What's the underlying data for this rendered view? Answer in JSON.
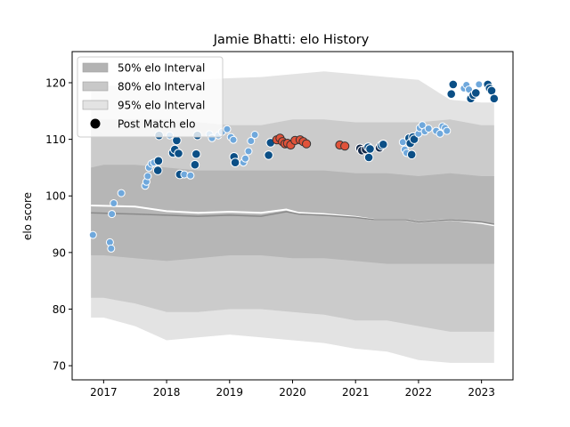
{
  "chart_data": {
    "type": "scatter",
    "title": "Jamie Bhatti: elo History",
    "xlabel": "",
    "ylabel": "elo score",
    "xlim": [
      2016.5,
      2023.5
    ],
    "ylim": [
      67.5,
      125.5
    ],
    "x_ticks": [
      2017,
      2018,
      2019,
      2020,
      2021,
      2022,
      2023
    ],
    "x_tick_labels": [
      "2017",
      "2018",
      "2019",
      "2020",
      "2021",
      "2022",
      "2023"
    ],
    "y_ticks": [
      70,
      80,
      90,
      100,
      110,
      120
    ],
    "y_tick_labels": [
      "70",
      "80",
      "90",
      "100",
      "110",
      "120"
    ],
    "grid": false,
    "legend_position": "top-left",
    "legend": [
      {
        "label": "50% elo Interval",
        "kind": "band",
        "color": "#b3b3b3"
      },
      {
        "label": "80% elo Interval",
        "kind": "band",
        "color": "#c8c8c8"
      },
      {
        "label": "95% elo Interval",
        "kind": "band",
        "color": "#e3e3e3"
      },
      {
        "label": "Post Match elo",
        "kind": "marker",
        "color": "#000000"
      }
    ],
    "colors": {
      "band95": "#e3e3e3",
      "band80": "#cbcbcb",
      "band50": "#b6b6b6",
      "mean_line": "#8a8a8a",
      "median_line": "#ffffff",
      "light_point": "#6fa8dc",
      "dark_point": "#0b4f86",
      "red_point": "#e0533a",
      "navy_point": "#132848",
      "marker_edge": "#ffffff",
      "dark_edge": "#333333"
    },
    "bands": {
      "x": [
        2016.8,
        2017.0,
        2017.5,
        2018.0,
        2018.5,
        2019.0,
        2019.5,
        2020.0,
        2020.5,
        2021.0,
        2021.5,
        2022.0,
        2022.5,
        2023.0,
        2023.2
      ],
      "p95_upper": [
        119.5,
        119.5,
        119.5,
        120.0,
        120.5,
        120.8,
        121.0,
        121.5,
        122.0,
        121.5,
        121.0,
        120.5,
        117.0,
        116.5,
        116.5
      ],
      "p80_upper": [
        113.5,
        113.5,
        113.5,
        113.5,
        113.0,
        112.5,
        112.5,
        113.5,
        113.5,
        113.0,
        113.0,
        113.0,
        113.5,
        112.5,
        112.5
      ],
      "p50_upper": [
        105.0,
        105.5,
        105.5,
        105.0,
        104.5,
        104.5,
        104.5,
        104.5,
        104.5,
        104.0,
        104.0,
        103.5,
        104.0,
        103.5,
        103.5
      ],
      "p50_lower": [
        89.5,
        89.5,
        89.0,
        88.5,
        89.0,
        89.5,
        89.5,
        89.0,
        89.0,
        88.5,
        88.0,
        88.0,
        88.0,
        88.0,
        88.0
      ],
      "p80_lower": [
        82.0,
        82.0,
        81.0,
        79.5,
        79.5,
        80.0,
        80.0,
        79.5,
        79.0,
        78.0,
        78.0,
        77.0,
        76.0,
        76.0,
        76.0
      ],
      "p95_lower": [
        78.5,
        78.5,
        77.0,
        74.5,
        75.0,
        75.5,
        75.0,
        74.5,
        74.0,
        73.0,
        72.5,
        71.0,
        70.5,
        70.5,
        70.5
      ]
    },
    "mean_line": {
      "x": [
        2016.8,
        2017.5,
        2018.0,
        2018.5,
        2019.0,
        2019.5,
        2019.9,
        2020.1,
        2020.5,
        2021.0,
        2021.3,
        2021.8,
        2022.0,
        2022.5,
        2023.0,
        2023.2
      ],
      "y": [
        97.0,
        96.8,
        96.6,
        96.4,
        96.6,
        96.4,
        97.2,
        96.8,
        96.6,
        96.2,
        95.8,
        95.8,
        95.4,
        95.8,
        95.4,
        95.0
      ]
    },
    "median_line": {
      "x": [
        2016.8,
        2017.5,
        2018.0,
        2018.5,
        2019.0,
        2019.5,
        2019.9,
        2020.1,
        2020.5,
        2021.0,
        2021.3,
        2021.8,
        2022.0,
        2022.5,
        2023.0,
        2023.2
      ],
      "y": [
        98.3,
        98.1,
        97.3,
        97.0,
        97.2,
        97.0,
        97.6,
        97.0,
        96.8,
        96.3,
        95.8,
        95.8,
        95.4,
        95.8,
        95.2,
        94.8
      ]
    },
    "points": [
      {
        "x": 2016.83,
        "y": 93.1,
        "c": "light"
      },
      {
        "x": 2017.1,
        "y": 91.8,
        "c": "light"
      },
      {
        "x": 2017.12,
        "y": 90.7,
        "c": "light"
      },
      {
        "x": 2017.13,
        "y": 96.8,
        "c": "light"
      },
      {
        "x": 2017.16,
        "y": 98.7,
        "c": "light"
      },
      {
        "x": 2017.28,
        "y": 100.5,
        "c": "light"
      },
      {
        "x": 2017.66,
        "y": 101.8,
        "c": "light"
      },
      {
        "x": 2017.68,
        "y": 102.5,
        "c": "light"
      },
      {
        "x": 2017.7,
        "y": 103.5,
        "c": "light"
      },
      {
        "x": 2017.72,
        "y": 105.0,
        "c": "light"
      },
      {
        "x": 2017.76,
        "y": 105.7,
        "c": "light"
      },
      {
        "x": 2017.8,
        "y": 105.9,
        "c": "light"
      },
      {
        "x": 2017.86,
        "y": 104.5,
        "c": "dark"
      },
      {
        "x": 2017.87,
        "y": 106.2,
        "c": "dark"
      },
      {
        "x": 2017.88,
        "y": 110.7,
        "c": "dark"
      },
      {
        "x": 2018.05,
        "y": 110.7,
        "c": "light"
      },
      {
        "x": 2018.1,
        "y": 107.6,
        "c": "dark"
      },
      {
        "x": 2018.13,
        "y": 108.2,
        "c": "dark"
      },
      {
        "x": 2018.16,
        "y": 109.8,
        "c": "dark"
      },
      {
        "x": 2018.19,
        "y": 107.5,
        "c": "dark"
      },
      {
        "x": 2018.21,
        "y": 103.8,
        "c": "dark"
      },
      {
        "x": 2018.28,
        "y": 103.8,
        "c": "light"
      },
      {
        "x": 2018.38,
        "y": 103.6,
        "c": "light"
      },
      {
        "x": 2018.45,
        "y": 105.5,
        "c": "dark"
      },
      {
        "x": 2018.47,
        "y": 107.4,
        "c": "dark"
      },
      {
        "x": 2018.49,
        "y": 110.7,
        "c": "dark"
      },
      {
        "x": 2018.68,
        "y": 110.9,
        "c": "light"
      },
      {
        "x": 2018.72,
        "y": 110.2,
        "c": "light"
      },
      {
        "x": 2018.82,
        "y": 110.7,
        "c": "light"
      },
      {
        "x": 2018.88,
        "y": 111.3,
        "c": "light"
      },
      {
        "x": 2018.96,
        "y": 111.8,
        "c": "light"
      },
      {
        "x": 2019.02,
        "y": 110.4,
        "c": "light"
      },
      {
        "x": 2019.06,
        "y": 109.9,
        "c": "light"
      },
      {
        "x": 2019.07,
        "y": 106.9,
        "c": "dark"
      },
      {
        "x": 2019.09,
        "y": 105.9,
        "c": "dark"
      },
      {
        "x": 2019.22,
        "y": 105.9,
        "c": "light"
      },
      {
        "x": 2019.25,
        "y": 106.6,
        "c": "light"
      },
      {
        "x": 2019.3,
        "y": 107.9,
        "c": "light"
      },
      {
        "x": 2019.34,
        "y": 109.7,
        "c": "light"
      },
      {
        "x": 2019.4,
        "y": 110.8,
        "c": "light"
      },
      {
        "x": 2019.62,
        "y": 107.2,
        "c": "dark"
      },
      {
        "x": 2019.65,
        "y": 109.4,
        "c": "dark"
      },
      {
        "x": 2019.75,
        "y": 109.9,
        "c": "red"
      },
      {
        "x": 2019.8,
        "y": 110.2,
        "c": "red"
      },
      {
        "x": 2019.84,
        "y": 109.6,
        "c": "red"
      },
      {
        "x": 2019.88,
        "y": 109.2,
        "c": "red"
      },
      {
        "x": 2019.92,
        "y": 109.3,
        "c": "red"
      },
      {
        "x": 2019.97,
        "y": 109.0,
        "c": "red"
      },
      {
        "x": 2020.04,
        "y": 109.8,
        "c": "red"
      },
      {
        "x": 2020.12,
        "y": 109.9,
        "c": "red"
      },
      {
        "x": 2020.17,
        "y": 109.6,
        "c": "red"
      },
      {
        "x": 2020.22,
        "y": 109.2,
        "c": "red"
      },
      {
        "x": 2020.75,
        "y": 109.0,
        "c": "red"
      },
      {
        "x": 2020.83,
        "y": 108.8,
        "c": "red"
      },
      {
        "x": 2021.07,
        "y": 108.4,
        "c": "navy"
      },
      {
        "x": 2021.1,
        "y": 108.0,
        "c": "navy"
      },
      {
        "x": 2021.16,
        "y": 108.2,
        "c": "navy"
      },
      {
        "x": 2021.2,
        "y": 108.6,
        "c": "dark"
      },
      {
        "x": 2021.21,
        "y": 106.8,
        "c": "dark"
      },
      {
        "x": 2021.23,
        "y": 108.3,
        "c": "dark"
      },
      {
        "x": 2021.38,
        "y": 108.5,
        "c": "navy"
      },
      {
        "x": 2021.41,
        "y": 108.9,
        "c": "dark"
      },
      {
        "x": 2021.44,
        "y": 109.1,
        "c": "dark"
      },
      {
        "x": 2021.75,
        "y": 109.5,
        "c": "light"
      },
      {
        "x": 2021.78,
        "y": 108.2,
        "c": "light"
      },
      {
        "x": 2021.81,
        "y": 107.6,
        "c": "light"
      },
      {
        "x": 2021.85,
        "y": 110.2,
        "c": "dark"
      },
      {
        "x": 2021.87,
        "y": 109.3,
        "c": "dark"
      },
      {
        "x": 2021.89,
        "y": 107.3,
        "c": "dark"
      },
      {
        "x": 2021.91,
        "y": 110.4,
        "c": "dark"
      },
      {
        "x": 2021.93,
        "y": 110.0,
        "c": "dark"
      },
      {
        "x": 2022.0,
        "y": 111.0,
        "c": "light"
      },
      {
        "x": 2022.02,
        "y": 112.0,
        "c": "light"
      },
      {
        "x": 2022.06,
        "y": 112.5,
        "c": "light"
      },
      {
        "x": 2022.1,
        "y": 111.4,
        "c": "light"
      },
      {
        "x": 2022.16,
        "y": 111.9,
        "c": "light"
      },
      {
        "x": 2022.28,
        "y": 111.5,
        "c": "light"
      },
      {
        "x": 2022.34,
        "y": 111.0,
        "c": "light"
      },
      {
        "x": 2022.38,
        "y": 112.3,
        "c": "light"
      },
      {
        "x": 2022.42,
        "y": 112.0,
        "c": "light"
      },
      {
        "x": 2022.45,
        "y": 111.5,
        "c": "light"
      },
      {
        "x": 2022.52,
        "y": 118.0,
        "c": "dark"
      },
      {
        "x": 2022.55,
        "y": 119.7,
        "c": "dark"
      },
      {
        "x": 2022.72,
        "y": 119.0,
        "c": "light"
      },
      {
        "x": 2022.76,
        "y": 119.6,
        "c": "light"
      },
      {
        "x": 2022.8,
        "y": 118.8,
        "c": "light"
      },
      {
        "x": 2022.83,
        "y": 117.2,
        "c": "dark"
      },
      {
        "x": 2022.87,
        "y": 117.8,
        "c": "dark"
      },
      {
        "x": 2022.91,
        "y": 118.2,
        "c": "dark"
      },
      {
        "x": 2022.96,
        "y": 119.7,
        "c": "light"
      },
      {
        "x": 2023.1,
        "y": 119.7,
        "c": "dark"
      },
      {
        "x": 2023.13,
        "y": 119.0,
        "c": "dark"
      },
      {
        "x": 2023.16,
        "y": 118.6,
        "c": "dark"
      },
      {
        "x": 2023.2,
        "y": 117.2,
        "c": "dark"
      }
    ]
  }
}
